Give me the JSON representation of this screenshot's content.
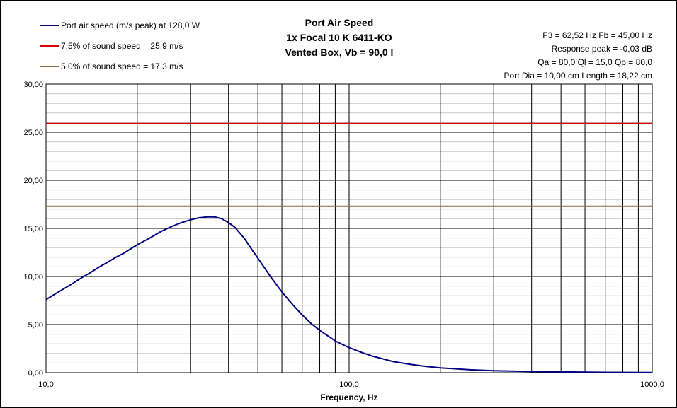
{
  "chart_data": {
    "type": "line",
    "title": [
      "Port Air Speed",
      "1x Focal 10 K 6411-KO",
      "Vented Box, Vb = 90,0 l"
    ],
    "xlabel": "Frequency, Hz",
    "ylabel": "",
    "x_scale": "log",
    "xlim": [
      10,
      1000
    ],
    "ylim": [
      0,
      30
    ],
    "x_ticks": [
      10,
      100,
      1000
    ],
    "x_tick_labels": [
      "10,0",
      "100,0",
      "1000,0"
    ],
    "y_ticks": [
      0,
      5,
      10,
      15,
      20,
      25,
      30
    ],
    "y_tick_labels": [
      "0,00",
      "5,00",
      "10,00",
      "15,00",
      "20,00",
      "25,00",
      "30,00"
    ],
    "grid": true,
    "legend_position": "top-left",
    "info_lines": [
      "F3 = 62,52 Hz  Fb = 45,00 Hz",
      "Response peak = -0,03 dB",
      "Qa = 80,0  Ql = 15,0  Qp = 80,0",
      "Port Dia = 10,00 cm  Length = 18,22 cm"
    ],
    "series": [
      {
        "name": "Port air speed (m/s peak) at 128,0 W",
        "color": "#000080",
        "x": [
          10,
          11,
          12,
          13,
          14,
          15,
          16,
          17,
          18,
          20,
          22,
          24,
          26,
          28,
          30,
          32,
          34,
          36,
          38,
          40,
          42,
          45,
          48,
          50,
          55,
          60,
          65,
          70,
          75,
          80,
          90,
          100,
          110,
          120,
          140,
          160,
          180,
          200,
          250,
          300,
          400,
          500,
          700,
          1000
        ],
        "y": [
          7.6,
          8.4,
          9.1,
          9.8,
          10.4,
          11.0,
          11.5,
          12.0,
          12.4,
          13.3,
          14.0,
          14.7,
          15.2,
          15.6,
          15.9,
          16.1,
          16.2,
          16.2,
          16.0,
          15.6,
          15.1,
          14.0,
          12.7,
          11.9,
          10.0,
          8.4,
          7.1,
          6.0,
          5.1,
          4.4,
          3.3,
          2.6,
          2.1,
          1.7,
          1.15,
          0.85,
          0.65,
          0.5,
          0.3,
          0.2,
          0.12,
          0.08,
          0.04,
          0.02
        ]
      },
      {
        "name": "7,5% of sound speed = 25,9 m/s",
        "color": "#d40000",
        "x": [
          10,
          1000
        ],
        "y": [
          25.9,
          25.9
        ]
      },
      {
        "name": "5,0% of sound speed = 17,3 m/s",
        "color": "#8b6b3a",
        "x": [
          10,
          1000
        ],
        "y": [
          17.3,
          17.3
        ]
      }
    ]
  }
}
